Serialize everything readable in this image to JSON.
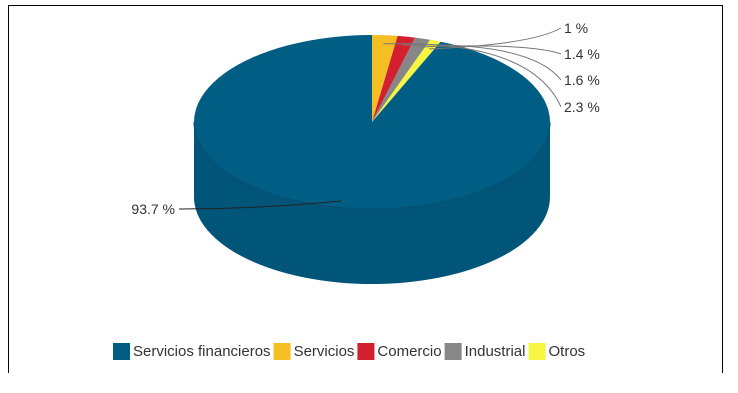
{
  "chart_data": {
    "type": "pie",
    "title": "",
    "categories": [
      "Servicios financieros",
      "Servicios",
      "Comercio",
      "Industrial",
      "Otros"
    ],
    "values": [
      93.7,
      2.3,
      1.6,
      1.4,
      1.0
    ],
    "labels": [
      "93.7 %",
      "2.3 %",
      "1.6 %",
      "1.4 %",
      "1 %"
    ],
    "colors": [
      "#005E85",
      "#F5BE23",
      "#D2202F",
      "#878787",
      "#F5F542"
    ],
    "legend_position": "bottom",
    "style": "3d"
  }
}
